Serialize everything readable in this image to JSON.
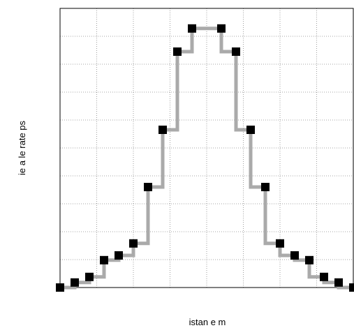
{
  "chart_data": {
    "type": "step",
    "x_label": "istan e  m",
    "y_label": "ie a le rate    ps",
    "x": [
      0,
      0.4,
      0.8,
      1.2,
      1.6,
      2.0,
      2.4,
      2.8,
      3.2,
      3.6,
      4.4,
      4.8,
      5.2,
      5.6,
      6.0,
      6.4,
      6.8,
      7.2,
      7.6,
      8.0
    ],
    "series": [
      {
        "color": "#aaaaaa",
        "values": [
          0,
          0.18,
          0.38,
          0.98,
          1.15,
          1.58,
          3.6,
          5.65,
          8.45,
          9.28,
          9.28,
          8.45,
          5.65,
          3.6,
          1.58,
          1.15,
          0.98,
          0.38,
          0.18,
          0
        ]
      }
    ],
    "marker_color": "#000000",
    "xlim": [
      0,
      8
    ],
    "ylim": [
      0,
      10
    ],
    "xticks": [
      0,
      1,
      2,
      3,
      4,
      5,
      6,
      7,
      8
    ],
    "yticks": [
      0,
      1,
      2,
      3,
      4,
      5,
      6,
      7,
      8,
      9,
      10
    ],
    "grid": true
  }
}
